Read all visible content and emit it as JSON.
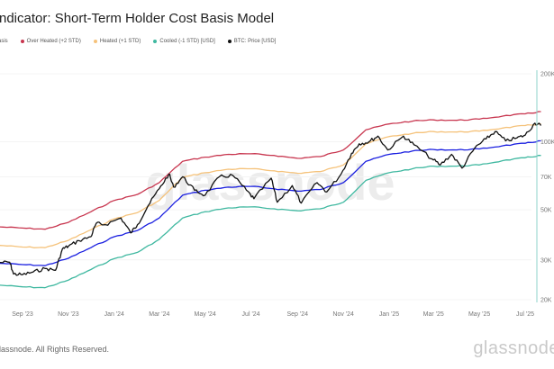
{
  "header": {
    "title": "ndicator: Short-Term Holder Cost Basis Model"
  },
  "footer": {
    "copyright": "lassnode. All Rights Reserved.",
    "logo": "glassnode"
  },
  "chart_data": {
    "type": "line",
    "title": "ndicator: Short-Term Holder Cost Basis Model",
    "watermark": "glassnode",
    "yscale": "log",
    "ylim": [
      20000,
      200000
    ],
    "ylabel": "",
    "xlabel": "",
    "x_ticks": [
      {
        "date": "2023-09-01",
        "label": "Sep '23"
      },
      {
        "date": "2023-11-01",
        "label": "Nov '23"
      },
      {
        "date": "2024-01-01",
        "label": "Jan '24"
      },
      {
        "date": "2024-03-01",
        "label": "Mar '24"
      },
      {
        "date": "2024-05-01",
        "label": "May '24"
      },
      {
        "date": "2024-07-01",
        "label": "Jul '24"
      },
      {
        "date": "2024-09-01",
        "label": "Sep '24"
      },
      {
        "date": "2024-11-01",
        "label": "Nov '24"
      },
      {
        "date": "2025-01-01",
        "label": "Jan '25"
      },
      {
        "date": "2025-03-01",
        "label": "Mar '25"
      },
      {
        "date": "2025-05-01",
        "label": "May '25"
      },
      {
        "date": "2025-07-01",
        "label": "Jul '25"
      }
    ],
    "y_ticks": [
      {
        "value": 200000,
        "label": "200K"
      },
      {
        "value": 100000,
        "label": "100K"
      },
      {
        "value": 70000,
        "label": "70K"
      },
      {
        "value": 50000,
        "label": "50K"
      },
      {
        "value": 30000,
        "label": "30K"
      },
      {
        "value": 20000,
        "label": "20K"
      }
    ],
    "legend": [
      {
        "label": "asis",
        "color": "#1a1fe0"
      },
      {
        "label": "Over Heated (+2 STD)",
        "color": "#c8364f"
      },
      {
        "label": "Heated (+1 STD)",
        "color": "#f5c27a"
      },
      {
        "label": "Cooled (-1 STD) [USD]",
        "color": "#3fb8a0"
      },
      {
        "label": "BTC: Price [USD]",
        "color": "#111111"
      }
    ],
    "band_dates": [
      "2023-08-01",
      "2023-09-01",
      "2023-10-01",
      "2023-11-01",
      "2023-12-01",
      "2024-01-01",
      "2024-02-01",
      "2024-03-01",
      "2024-04-01",
      "2024-05-01",
      "2024-06-01",
      "2024-07-01",
      "2024-08-01",
      "2024-09-01",
      "2024-10-01",
      "2024-11-01",
      "2024-12-01",
      "2025-01-01",
      "2025-02-01",
      "2025-03-01",
      "2025-04-01",
      "2025-05-01",
      "2025-06-01",
      "2025-07-01",
      "2025-07-22"
    ],
    "series": [
      {
        "name": "Over Heated (+2 STD)",
        "color": "#c8364f",
        "values": [
          42000,
          41500,
          41000,
          44000,
          49000,
          55000,
          58500,
          66000,
          82000,
          85500,
          88000,
          88500,
          87000,
          84500,
          86000,
          92000,
          113000,
          120000,
          123500,
          125000,
          124500,
          126000,
          130000,
          133000,
          136000
        ]
      },
      {
        "name": "Heated (+1 STD)",
        "color": "#f5c27a",
        "values": [
          34800,
          34200,
          34000,
          36600,
          40800,
          45600,
          48600,
          55000,
          69600,
          73000,
          75600,
          76000,
          74400,
          72600,
          73800,
          79000,
          98000,
          105500,
          109000,
          111000,
          110500,
          111500,
          115000,
          118000,
          120000
        ]
      },
      {
        "name": "STH Cost Basis",
        "color": "#1a1fe0",
        "values": [
          29000,
          28600,
          28300,
          30500,
          34000,
          38000,
          40500,
          46000,
          58000,
          61000,
          63000,
          63500,
          62000,
          60500,
          61500,
          66000,
          82000,
          88000,
          91000,
          92500,
          92000,
          93000,
          96000,
          98500,
          101000
        ]
      },
      {
        "name": "Cooled (-1 STD) [USD]",
        "color": "#3fb8a0",
        "values": [
          23200,
          22800,
          22600,
          24400,
          27200,
          30400,
          32400,
          37000,
          46000,
          49000,
          51000,
          51500,
          50500,
          49500,
          50500,
          54000,
          67500,
          73000,
          76000,
          78000,
          78000,
          79000,
          82500,
          85000,
          87000
        ]
      }
    ],
    "price": {
      "name": "BTC: Price [USD]",
      "color": "#111111",
      "dates": [
        "2023-08-01",
        "2023-08-15",
        "2023-08-20",
        "2023-09-01",
        "2023-09-15",
        "2023-10-01",
        "2023-10-15",
        "2023-10-24",
        "2023-11-01",
        "2023-11-15",
        "2023-12-01",
        "2023-12-08",
        "2023-12-20",
        "2024-01-10",
        "2024-01-23",
        "2024-02-01",
        "2024-02-15",
        "2024-03-01",
        "2024-03-14",
        "2024-03-20",
        "2024-04-01",
        "2024-04-17",
        "2024-05-01",
        "2024-05-20",
        "2024-06-07",
        "2024-06-25",
        "2024-07-05",
        "2024-07-28",
        "2024-08-05",
        "2024-08-25",
        "2024-09-06",
        "2024-09-27",
        "2024-10-10",
        "2024-10-29",
        "2024-11-12",
        "2024-11-22",
        "2024-12-05",
        "2024-12-17",
        "2024-12-30",
        "2025-01-20",
        "2025-02-03",
        "2025-02-27",
        "2025-03-10",
        "2025-03-25",
        "2025-04-08",
        "2025-04-25",
        "2025-05-10",
        "2025-05-22",
        "2025-06-05",
        "2025-06-20",
        "2025-07-01",
        "2025-07-14",
        "2025-07-22"
      ],
      "values": [
        29200,
        29300,
        26000,
        25800,
        26500,
        27500,
        27000,
        33500,
        34500,
        36500,
        38000,
        43500,
        43000,
        46000,
        39500,
        43000,
        52000,
        62000,
        72000,
        63000,
        70000,
        61000,
        58000,
        70000,
        71000,
        61000,
        56000,
        69000,
        54000,
        64000,
        53500,
        66000,
        60000,
        72000,
        89000,
        98000,
        100000,
        106000,
        92000,
        106000,
        97000,
        84000,
        79000,
        88000,
        76500,
        94000,
        103000,
        111000,
        101000,
        104000,
        107000,
        121000,
        118000
      ]
    }
  }
}
